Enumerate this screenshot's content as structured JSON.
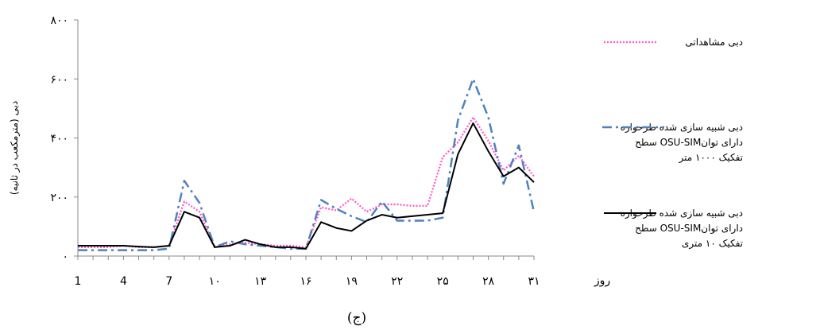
{
  "chart_data": {
    "type": "line",
    "xlabel": "روز",
    "ylabel": "دبی (مترمکعب در ثانیه)",
    "caption": "(ج)",
    "xlim": [
      1,
      31
    ],
    "ylim": [
      0,
      800
    ],
    "x_ticks": [
      1,
      4,
      7,
      10,
      13,
      16,
      19,
      22,
      25,
      28,
      31
    ],
    "x_tick_labels": [
      "1",
      "4",
      "7",
      "۱۰",
      "۱۳",
      "۱۶",
      "۱۹",
      "۲۲",
      "۲۵",
      "۲۸",
      "۳۱"
    ],
    "y_ticks": [
      0,
      200,
      400,
      600,
      800
    ],
    "y_tick_labels": [
      "۰",
      "۲۰۰",
      "۴۰۰",
      "۶۰۰",
      "۸۰۰"
    ],
    "grid": false,
    "legend_position": "right",
    "x": [
      1,
      2,
      3,
      4,
      5,
      6,
      7,
      8,
      9,
      10,
      11,
      12,
      13,
      14,
      15,
      16,
      17,
      18,
      19,
      20,
      21,
      22,
      23,
      24,
      25,
      26,
      27,
      28,
      29,
      30,
      31
    ],
    "series": [
      {
        "name": "دبی مشاهداتی",
        "color": "#ff55cc",
        "style": "dotted",
        "values": [
          30,
          30,
          30,
          35,
          30,
          30,
          35,
          185,
          150,
          30,
          40,
          45,
          40,
          35,
          35,
          30,
          165,
          155,
          195,
          150,
          175,
          175,
          170,
          170,
          335,
          385,
          470,
          390,
          290,
          340,
          270
        ]
      },
      {
        "name_lines": [
          "دبی شبیه سازی شده طرحواره",
          "سطح  OSU-SIMدارای توان",
          "تفکیک ۱۰۰۰ متر"
        ],
        "color": "#4f81bd",
        "style": "dashdot",
        "values": [
          20,
          20,
          20,
          20,
          20,
          20,
          25,
          255,
          180,
          30,
          50,
          40,
          35,
          30,
          25,
          25,
          190,
          160,
          135,
          115,
          185,
          120,
          120,
          120,
          130,
          460,
          600,
          470,
          245,
          375,
          150
        ]
      },
      {
        "name_lines": [
          "دبی شبیه سازی شده طرحواره",
          "سطح  OSU-SIMدارای توان",
          "تفکیک ۱۰ متری"
        ],
        "color": "#000000",
        "style": "solid",
        "values": [
          35,
          35,
          35,
          35,
          32,
          30,
          35,
          150,
          130,
          30,
          35,
          55,
          40,
          30,
          30,
          25,
          115,
          95,
          85,
          120,
          140,
          130,
          135,
          140,
          145,
          345,
          450,
          355,
          270,
          300,
          250
        ]
      }
    ]
  }
}
